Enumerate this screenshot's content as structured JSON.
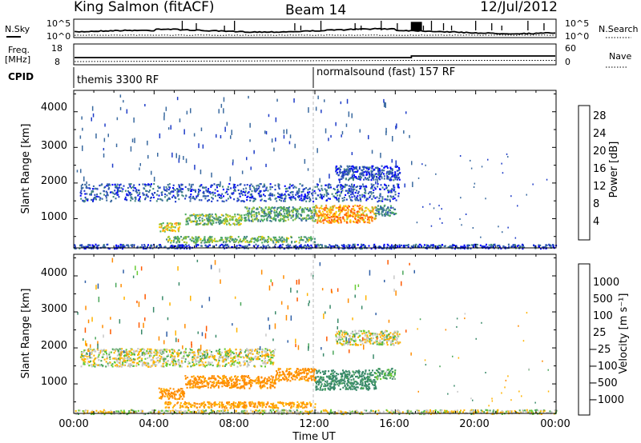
{
  "header": {
    "station": "King Salmon (fitACF)",
    "beam": "Beam 14",
    "date": "12/Jul/2012"
  },
  "strip_panels": {
    "nsky_label": "N.Sky",
    "nsky_ticks": [
      "10^5",
      "10^0"
    ],
    "nsearch_label": "N.Search",
    "nsearch_ticks": [
      "10^5",
      "10^0"
    ],
    "freq_label_1": "Freq.",
    "freq_label_2": "[MHz]",
    "freq_ticks": [
      "18",
      "8"
    ],
    "nave_label": "Nave",
    "nave_ticks": [
      "60",
      "0"
    ],
    "cpid_label": "CPID",
    "cpid_segments": [
      {
        "start_hour": 0,
        "label": "themis 3300 RF"
      },
      {
        "start_hour": 12,
        "label": "normalsound (fast) 157 RF"
      }
    ]
  },
  "colorbars": {
    "power": {
      "title": "Power [dB]",
      "ticks": [
        "28",
        "24",
        "20",
        "16",
        "12",
        "8",
        "4"
      ],
      "colors": [
        "#0000ff",
        "#1e3cc8",
        "#3a6aa0",
        "#458a80",
        "#4fae5e",
        "#a6c632",
        "#ffcc00",
        "#ff9a1e",
        "#ff5a0a",
        "#e00000"
      ]
    },
    "velocity": {
      "title": "Velocity [m s⁻¹]",
      "ticks": [
        "1000",
        "500",
        "100",
        "25",
        "−25",
        "−100",
        "−500",
        "−1000"
      ],
      "colors": [
        "#2046c8",
        "#2f5fa6",
        "#3a8a6a",
        "#4aa65a",
        "#66cc33",
        "#c8c8c8",
        "#ffb300",
        "#ff8c00",
        "#ff5a00",
        "#e80000"
      ]
    }
  },
  "axes": {
    "ylabel": "Slant Range [km]",
    "yticks": [
      "4000",
      "3000",
      "2000",
      "1000"
    ],
    "xlabel": "Time UT",
    "xticks": [
      "00:00",
      "04:00",
      "08:00",
      "12:00",
      "16:00",
      "20:00",
      "00:00"
    ]
  },
  "chart_data": {
    "type": "heatmap",
    "x_unit": "hours UT",
    "xlim": [
      0,
      24
    ],
    "ylim": [
      180,
      4600
    ],
    "power_scatter_regions_db": [
      {
        "t_start": 0.3,
        "t_end": 16.2,
        "range_km": [
          1500,
          2000
        ],
        "power_db": 6
      },
      {
        "t_start": 4.2,
        "t_end": 5.3,
        "range_km": [
          650,
          900
        ],
        "power_db": 18
      },
      {
        "t_start": 5.5,
        "t_end": 8.5,
        "range_km": [
          850,
          1150
        ],
        "power_db": 14
      },
      {
        "t_start": 8.5,
        "t_end": 12.0,
        "range_km": [
          950,
          1350
        ],
        "power_db": 12
      },
      {
        "t_start": 12.0,
        "t_end": 15.0,
        "range_km": [
          900,
          1400
        ],
        "power_db": 22
      },
      {
        "t_start": 15.0,
        "t_end": 16.0,
        "range_km": [
          1100,
          1400
        ],
        "power_db": 10
      },
      {
        "t_start": 4.5,
        "t_end": 12.0,
        "range_km": [
          350,
          520
        ],
        "power_db": 14
      },
      {
        "t_start": 0.0,
        "t_end": 24.0,
        "range_km": [
          180,
          300
        ],
        "power_db": 5
      },
      {
        "t_start": 13.0,
        "t_end": 16.2,
        "range_km": [
          2100,
          2500
        ],
        "power_db": 5
      }
    ],
    "velocity_scatter_regions_ms": [
      {
        "t_start": 0.3,
        "t_end": 10.0,
        "range_km": [
          1500,
          2000
        ],
        "velocity_ms": 0
      },
      {
        "t_start": 10.0,
        "t_end": 12.0,
        "range_km": [
          1100,
          1450
        ],
        "velocity_ms": -150
      },
      {
        "t_start": 4.2,
        "t_end": 5.5,
        "range_km": [
          600,
          900
        ],
        "velocity_ms": -150
      },
      {
        "t_start": 5.5,
        "t_end": 10.0,
        "range_km": [
          900,
          1250
        ],
        "velocity_ms": -150
      },
      {
        "t_start": 12.0,
        "t_end": 15.0,
        "range_km": [
          850,
          1400
        ],
        "velocity_ms": 150
      },
      {
        "t_start": 15.0,
        "t_end": 16.0,
        "range_km": [
          1150,
          1450
        ],
        "velocity_ms": 80
      },
      {
        "t_start": 4.5,
        "t_end": 12.0,
        "range_km": [
          350,
          520
        ],
        "velocity_ms": -100
      },
      {
        "t_start": 0.0,
        "t_end": 24.0,
        "range_km": [
          180,
          300
        ],
        "velocity_ms": 0
      },
      {
        "t_start": 13.0,
        "t_end": 16.2,
        "range_km": [
          2100,
          2500
        ],
        "velocity_ms": 0
      }
    ]
  }
}
